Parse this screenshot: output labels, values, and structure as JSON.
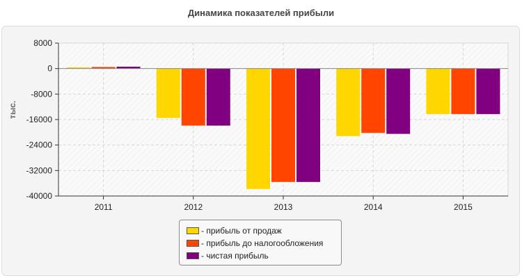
{
  "chart_data": {
    "type": "bar",
    "title": "Динамика показателей прибыли",
    "ylabel": "тыс.",
    "xlabel": "",
    "categories": [
      "2011",
      "2012",
      "2013",
      "2014",
      "2015"
    ],
    "ylim": [
      -40000,
      8000
    ],
    "yticks": [
      8000,
      0,
      -8000,
      -16000,
      -24000,
      -32000,
      -40000
    ],
    "ytick_labels": [
      "8000",
      "0",
      "-8000",
      "-16000",
      "-24000",
      "-32000",
      "-40000"
    ],
    "grid": true,
    "legend_position": "bottom-center",
    "series": [
      {
        "name": "- прибыль от продаж",
        "color": "#FFD700",
        "values": [
          400,
          -15500,
          -37800,
          -21200,
          -14300
        ]
      },
      {
        "name": "- прибыль до налогообложения",
        "color": "#FF4500",
        "values": [
          500,
          -17900,
          -35600,
          -20200,
          -14300
        ]
      },
      {
        "name": "- чистая прибыль",
        "color": "#800080",
        "values": [
          600,
          -17900,
          -35600,
          -20500,
          -14300
        ]
      }
    ]
  }
}
